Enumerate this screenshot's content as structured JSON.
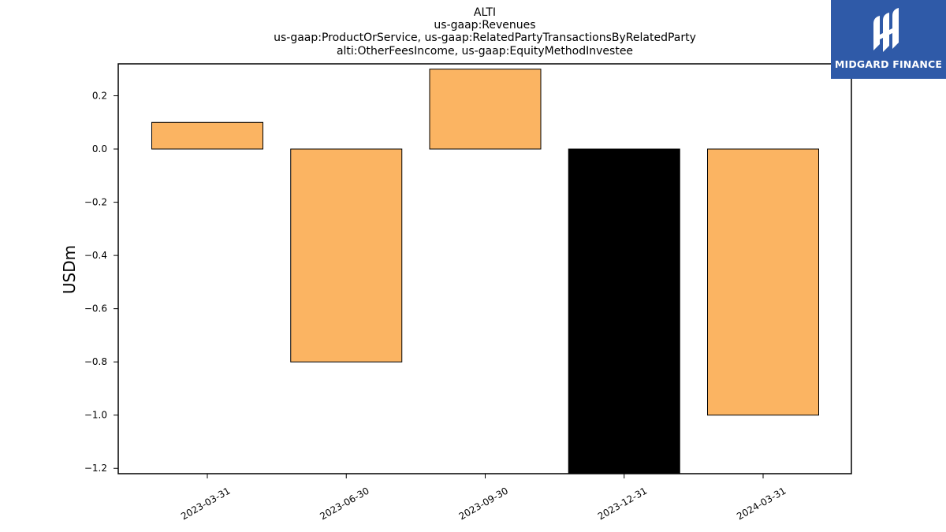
{
  "brand": {
    "name": "MIDGARD FINANCE",
    "icon": "midgard-logo-icon",
    "color": "#2f5aa8"
  },
  "chart_data": {
    "type": "bar",
    "title_lines": [
      "ALTI",
      "us-gaap:Revenues",
      "us-gaap:ProductOrService, us-gaap:RelatedPartyTransactionsByRelatedParty",
      "alti:OtherFeesIncome, us-gaap:EquityMethodInvestee"
    ],
    "xlabel": "",
    "ylabel": "USDm",
    "categories": [
      "2023-03-31",
      "2023-06-30",
      "2023-09-30",
      "2023-12-31",
      "2024-03-31"
    ],
    "values": [
      0.1,
      -0.8,
      0.3,
      -1.25,
      -1.0
    ],
    "bar_colors": [
      "#fbb462",
      "#fbb462",
      "#fbb462",
      "#000000",
      "#fbb462"
    ],
    "ylim": [
      -1.22,
      0.32
    ],
    "yticks": [
      0.2,
      0.0,
      -0.2,
      -0.4,
      -0.6,
      -0.8,
      -1.0,
      -1.2
    ],
    "ytick_labels": [
      "0.2",
      "0.0",
      "−0.2",
      "−0.4",
      "−0.6",
      "−0.8",
      "−1.0",
      "−1.2"
    ],
    "grid": false,
    "legend": "none"
  }
}
